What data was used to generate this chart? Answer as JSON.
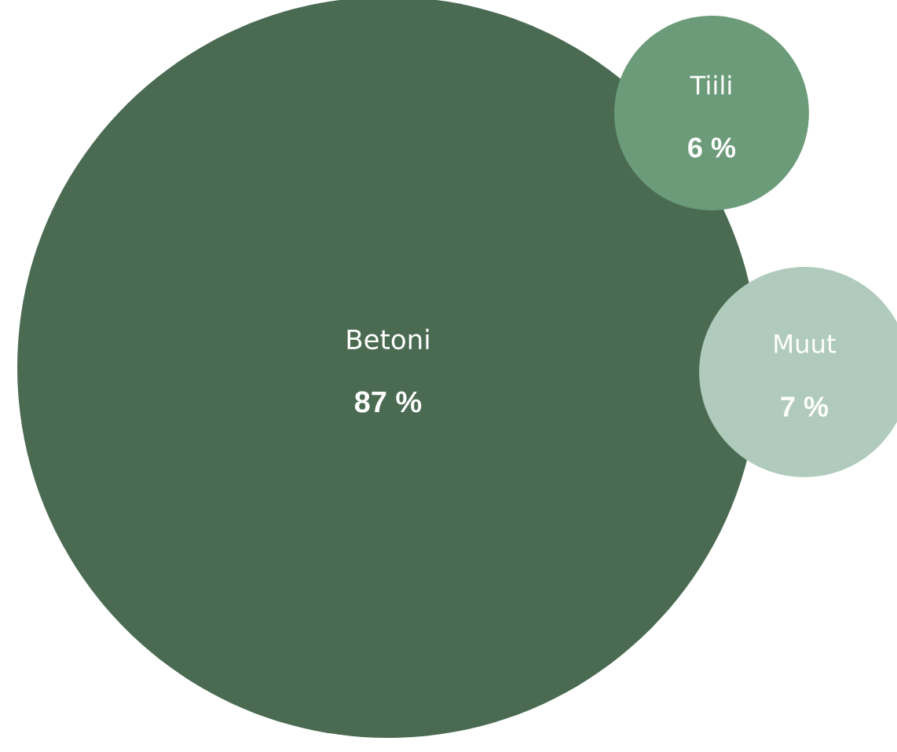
{
  "chart_data": {
    "type": "other",
    "categories": [
      "Betoni",
      "Tiili",
      "Muut"
    ],
    "values": [
      87,
      6,
      7
    ],
    "value_labels": [
      "87 %",
      "6 %",
      "7 %"
    ],
    "colors": [
      "#4a6b52",
      "#6b9b78",
      "#b0cbbd"
    ]
  }
}
